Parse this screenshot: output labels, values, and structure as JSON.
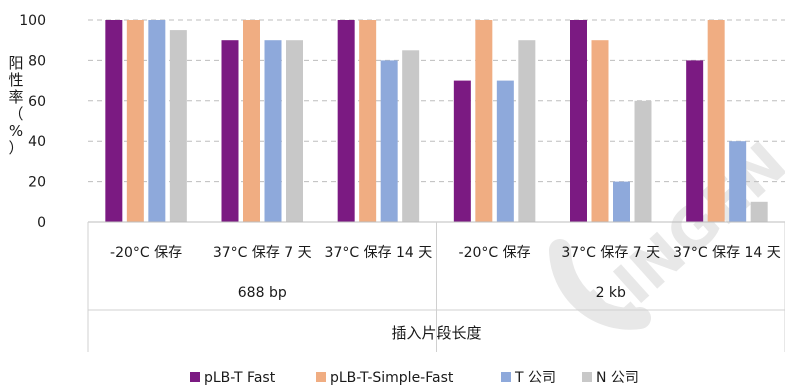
{
  "chart_data": {
    "type": "bar",
    "ylabel": "阳性率（%）",
    "xlabel": "插入片段长度",
    "ylim": [
      0,
      100
    ],
    "yticks": [
      0,
      20,
      40,
      60,
      80,
      100
    ],
    "grid": true,
    "legend_position": "bottom",
    "groups": [
      {
        "label": "688 bp",
        "categories": [
          "-20°C 保存",
          "37°C 保存 7 天",
          "37°C 保存 14 天"
        ]
      },
      {
        "label": "2 kb",
        "categories": [
          "-20°C 保存",
          "37°C 保存 7 天",
          "37°C 保存 14 天"
        ]
      }
    ],
    "series": [
      {
        "name": "pLB-T Fast",
        "color": "#7b1a82",
        "values": [
          100,
          90,
          100,
          70,
          100,
          80
        ]
      },
      {
        "name": "pLB-T-Simple-Fast",
        "color": "#f0ad82",
        "values": [
          100,
          100,
          100,
          100,
          90,
          100
        ]
      },
      {
        "name": "T 公司",
        "color": "#8ea9db",
        "values": [
          100,
          90,
          80,
          70,
          20,
          40
        ]
      },
      {
        "name": "N 公司",
        "color": "#c8c8c8",
        "values": [
          95,
          90,
          85,
          90,
          60,
          10
        ]
      }
    ]
  },
  "watermark": {
    "text": "LINGEN",
    "color": "#e8e8e8"
  }
}
